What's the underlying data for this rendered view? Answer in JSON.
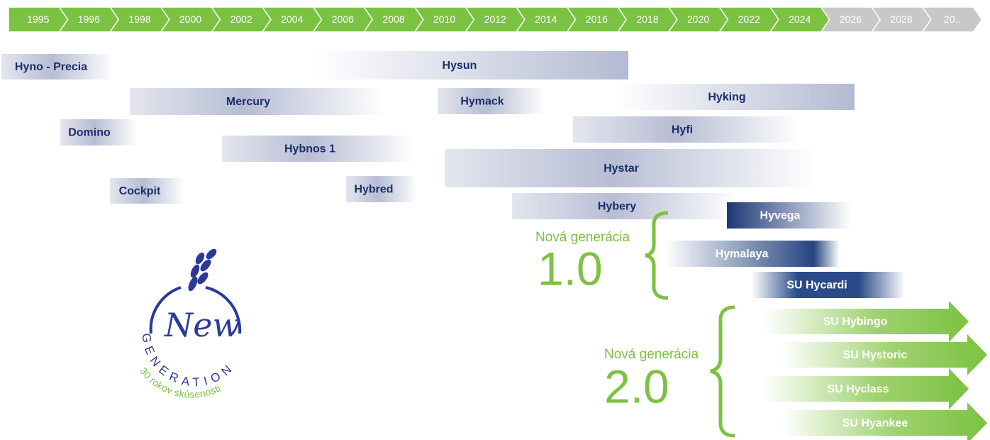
{
  "timeline": {
    "years": [
      "1995",
      "1996",
      "1998",
      "2000",
      "2002",
      "2004",
      "2006",
      "2008",
      "2010",
      "2012",
      "2014",
      "2016",
      "2018",
      "2020",
      "2022",
      "2024"
    ],
    "future_years": [
      "2026",
      "2028",
      "20.."
    ]
  },
  "products": [
    "Hyno   - Precia",
    "Hysun",
    "Mercury",
    "Hymack",
    "Hyking",
    "Domino",
    "Hyfi",
    "Hybnos 1",
    "Hystar",
    "Cockpit",
    "Hybred",
    "Hybery"
  ],
  "generation_1": {
    "label": "Nová generácia",
    "version": "1.0",
    "products": [
      "Hyvega",
      "Hymalaya",
      "SU Hycardi"
    ]
  },
  "generation_2": {
    "label": "Nová generácia",
    "version": "2.0",
    "products": [
      "SU Hybingo",
      "SU Hystoric",
      "SU Hyclass",
      "SU Hyankee"
    ]
  },
  "logo": {
    "word": "New",
    "ring": "GENERATION",
    "tagline": "30 rokov skúsenosti"
  }
}
